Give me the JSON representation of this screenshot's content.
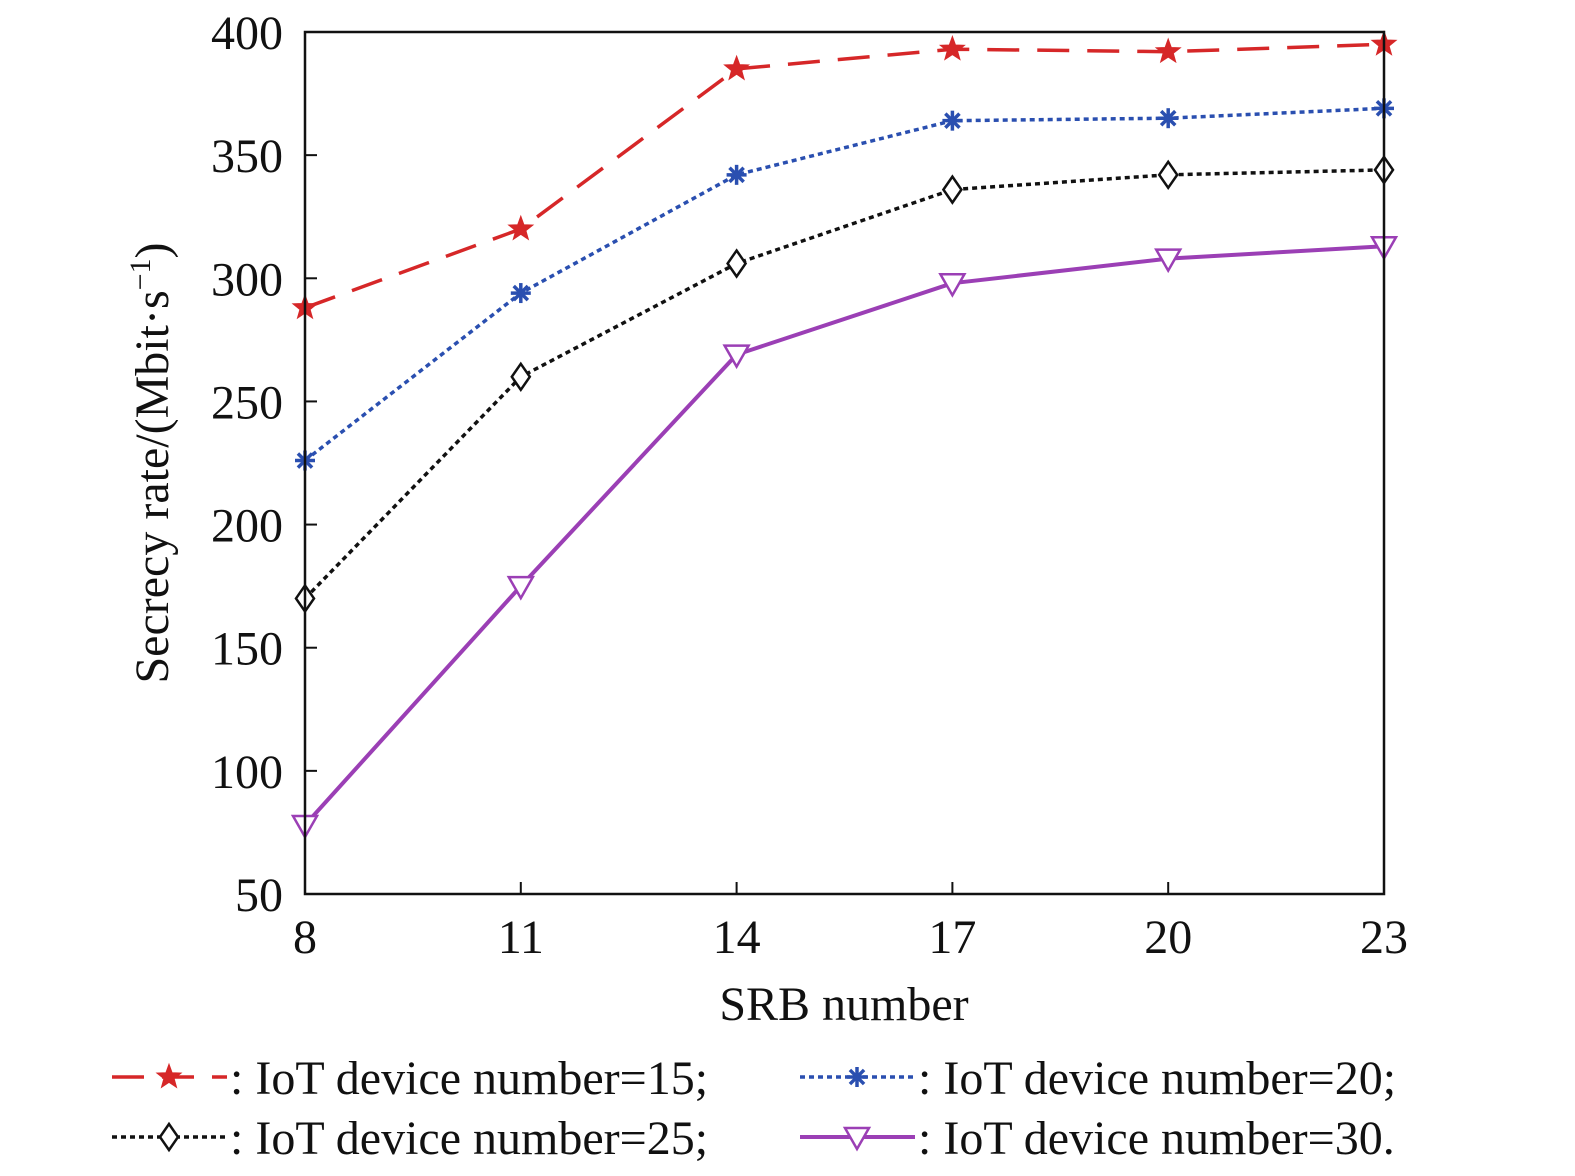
{
  "chart_data": {
    "type": "line",
    "title": "",
    "xlabel": "SRB number",
    "ylabel": "Secrecy rate/(Mbit·s",
    "ylabel_sup": "−1",
    "ylabel_close": ")",
    "x": [
      8,
      11,
      14,
      17,
      20,
      23
    ],
    "x_ticks": [
      "8",
      "11",
      "14",
      "17",
      "20",
      "23"
    ],
    "xlim": [
      8,
      23
    ],
    "ylim": [
      50,
      400
    ],
    "y_ticks": [
      "50",
      "100",
      "150",
      "200",
      "250",
      "300",
      "350",
      "400"
    ],
    "grid": false,
    "legend_position": "bottom",
    "series": [
      {
        "name": ": IoT device number=15;",
        "values": [
          288,
          320,
          385,
          393,
          392,
          395
        ],
        "color": "#d62728",
        "dash": "dashed",
        "marker": "star"
      },
      {
        "name": ": IoT device number=20;",
        "values": [
          226,
          294,
          342,
          364,
          365,
          369
        ],
        "color": "#2a4fb0",
        "dash": "dotted",
        "marker": "asterisk"
      },
      {
        "name": ": IoT device number=25;",
        "values": [
          170,
          260,
          306,
          336,
          342,
          344
        ],
        "color": "#111111",
        "dash": "dotted",
        "marker": "diamond"
      },
      {
        "name": ": IoT device number=30.",
        "values": [
          78,
          175,
          269,
          298,
          308,
          313
        ],
        "color": "#9b3fb5",
        "dash": "solid",
        "marker": "triangle-down"
      }
    ]
  }
}
